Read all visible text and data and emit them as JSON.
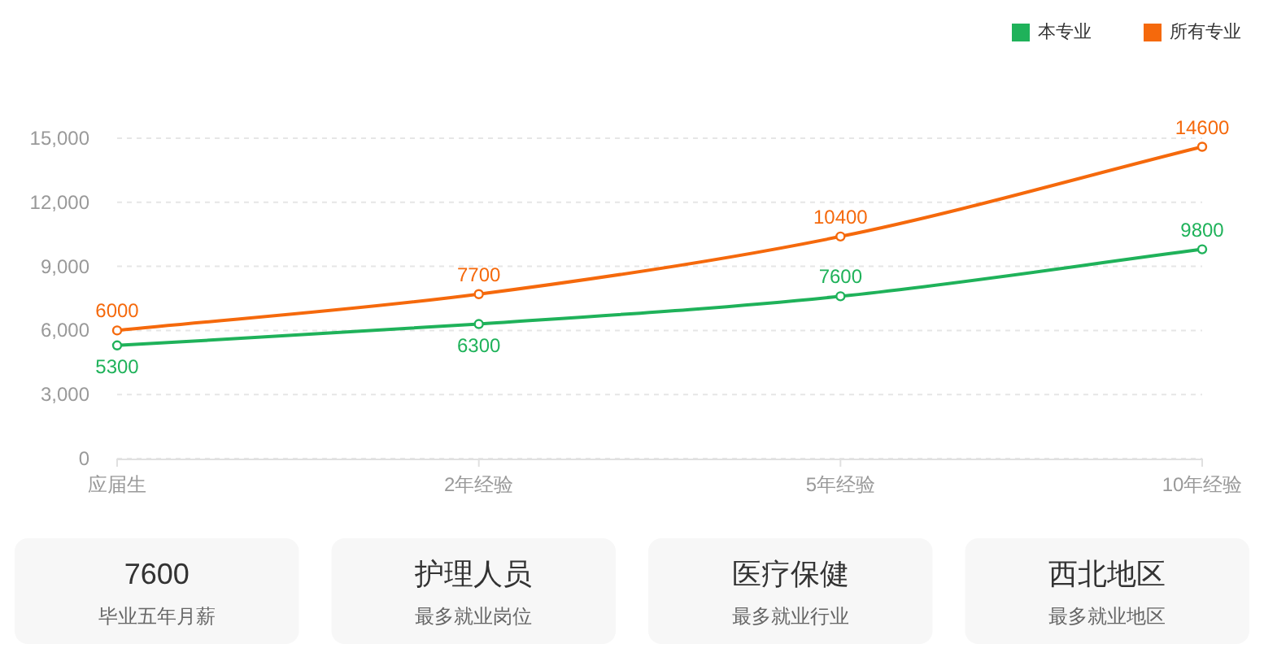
{
  "chart_data": [
    {
      "type": "line",
      "categories": [
        "应届生",
        "2年经验",
        "5年经验",
        "10年经验"
      ],
      "series": [
        {
          "name": "本专业",
          "color": "#1fb25a",
          "values": [
            5300,
            6300,
            7600,
            9800
          ]
        },
        {
          "name": "所有专业",
          "color": "#f5690c",
          "values": [
            6000,
            7700,
            10400,
            14600
          ]
        }
      ],
      "ylim": [
        0,
        15000
      ],
      "yticks": [
        0,
        {
          "value": 3000,
          "label": "3,000"
        },
        {
          "value": 6000,
          "label": "6,000"
        },
        {
          "value": 9000,
          "label": "9,000"
        },
        {
          "value": 12000,
          "label": "12,000"
        },
        {
          "value": 15000,
          "label": "15,000"
        }
      ],
      "grid": "y",
      "legend": "top right",
      "marker": "circle",
      "data_labels": true
    },
    {
      "type": "other",
      "title": "7600",
      "subtitle": "毕业五年月薪"
    },
    {
      "type": "other",
      "title": "护理人员",
      "subtitle": "最多就业岗位"
    },
    {
      "type": "other",
      "title": "医疗保健",
      "subtitle": "最多就业行业"
    },
    {
      "type": "other",
      "title": "西北地区",
      "subtitle": "最多就业地区"
    }
  ]
}
